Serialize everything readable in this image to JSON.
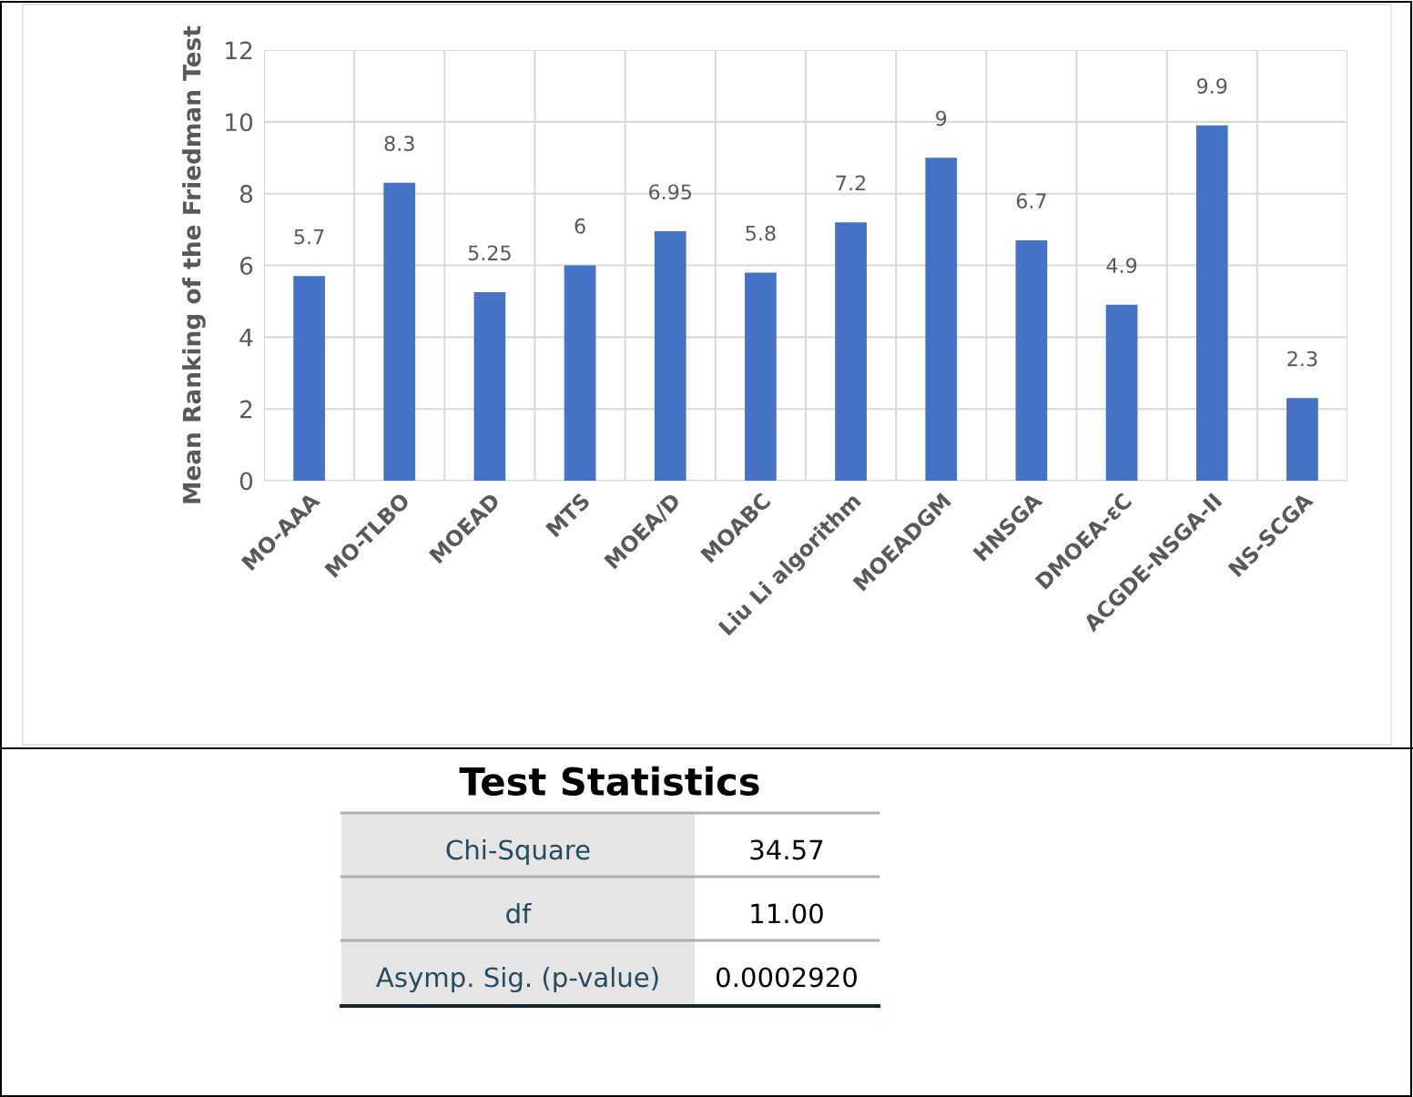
{
  "chart_data": [
    {
      "type": "bar",
      "ylabel": "Mean Ranking of the Friedman Test",
      "categories": [
        "MO-AAA",
        "MO-TLBO",
        "MOEAD",
        "MTS",
        "MOEA/D",
        "MOABC",
        "Liu Li algorithm",
        "MOEADGM",
        "HNSGA",
        "DMOEA-εC",
        "ACGDE-NSGA-II",
        "NS-SCGA"
      ],
      "values": [
        5.7,
        8.3,
        5.25,
        6,
        6.95,
        5.8,
        7.2,
        9,
        6.7,
        4.9,
        9.9,
        2.3
      ],
      "color": "#4472c4",
      "ylim": [
        0,
        12
      ],
      "yticks": [
        0,
        2,
        4,
        6,
        8,
        10,
        12
      ],
      "grid": true,
      "data_labels": true,
      "legend": false
    },
    {
      "type": "other",
      "title": "Test Statistics",
      "annotations": [
        "Chi-Square",
        "34.57",
        "df",
        "11.00",
        "Asymp. Sig. (p-value)",
        "0.0002920"
      ]
    }
  ]
}
